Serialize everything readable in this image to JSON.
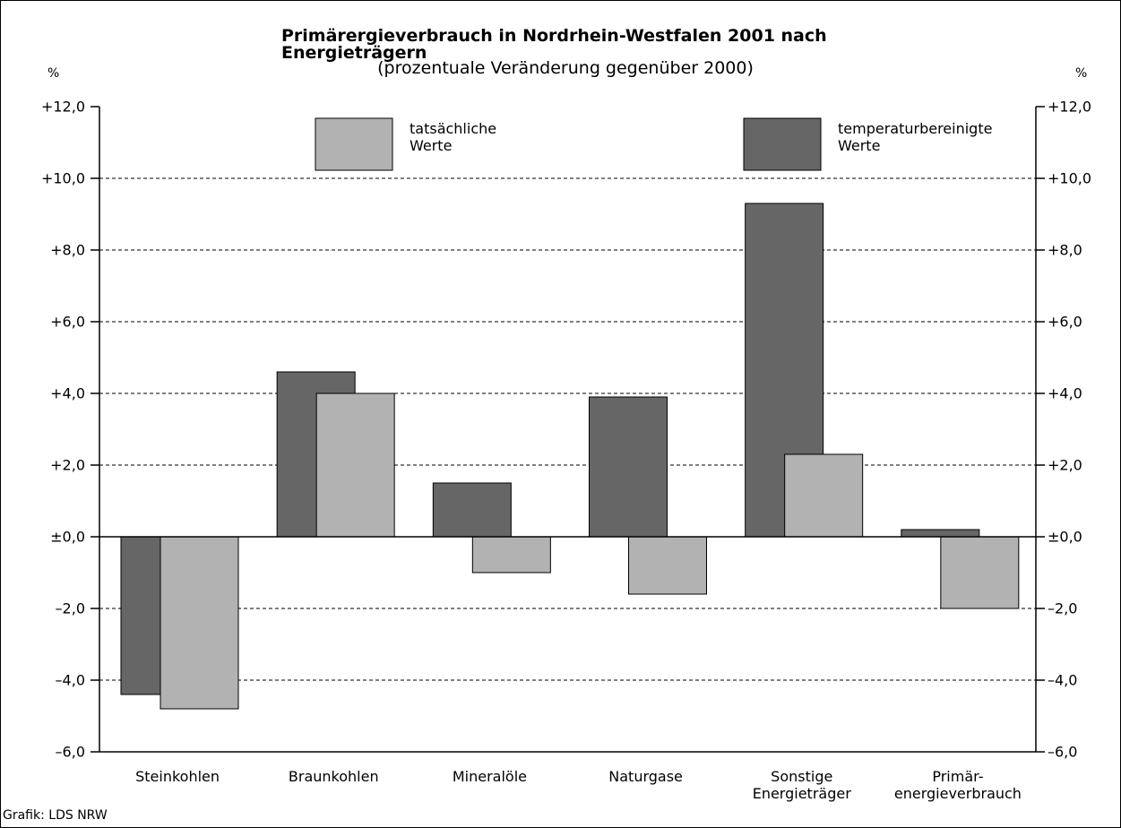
{
  "chart_data": {
    "type": "bar",
    "title": "Primärergieverbrauch in Nordrhein-Westfalen 2001 nach Energieträgern",
    "subtitle": "(prozentuale Veränderung gegenüber 2000)",
    "ylabel": "%",
    "y2label": "%",
    "source": "Grafik: LDS NRW",
    "categories": [
      "Steinkohlen",
      "Braunkohlen",
      "Mineralöle",
      "Naturgase",
      "Sonstige\nEnergieträger",
      "Primär-\nenergieverbrauch"
    ],
    "series": [
      {
        "name": "tatsächliche\nWerte",
        "color": "#b2b2b2",
        "values": [
          -4.8,
          4.0,
          -1.0,
          -1.6,
          2.3,
          -2.0
        ]
      },
      {
        "name": "temperaturbereinigte\nWerte",
        "color": "#666666",
        "values": [
          -4.4,
          4.6,
          1.5,
          3.9,
          9.3,
          0.2
        ]
      }
    ],
    "ylim": [
      -6,
      12
    ],
    "yticks": [
      {
        "value": 12,
        "label": "+12,0"
      },
      {
        "value": 10,
        "label": "+10,0"
      },
      {
        "value": 8,
        "label": "+8,0"
      },
      {
        "value": 6,
        "label": "+6,0"
      },
      {
        "value": 4,
        "label": "+4,0"
      },
      {
        "value": 2,
        "label": "+2,0"
      },
      {
        "value": 0,
        "label": "±0,0"
      },
      {
        "value": -2,
        "label": "–2,0"
      },
      {
        "value": -4,
        "label": "–4,0"
      },
      {
        "value": -6,
        "label": "–6,0"
      }
    ],
    "grid": true
  }
}
